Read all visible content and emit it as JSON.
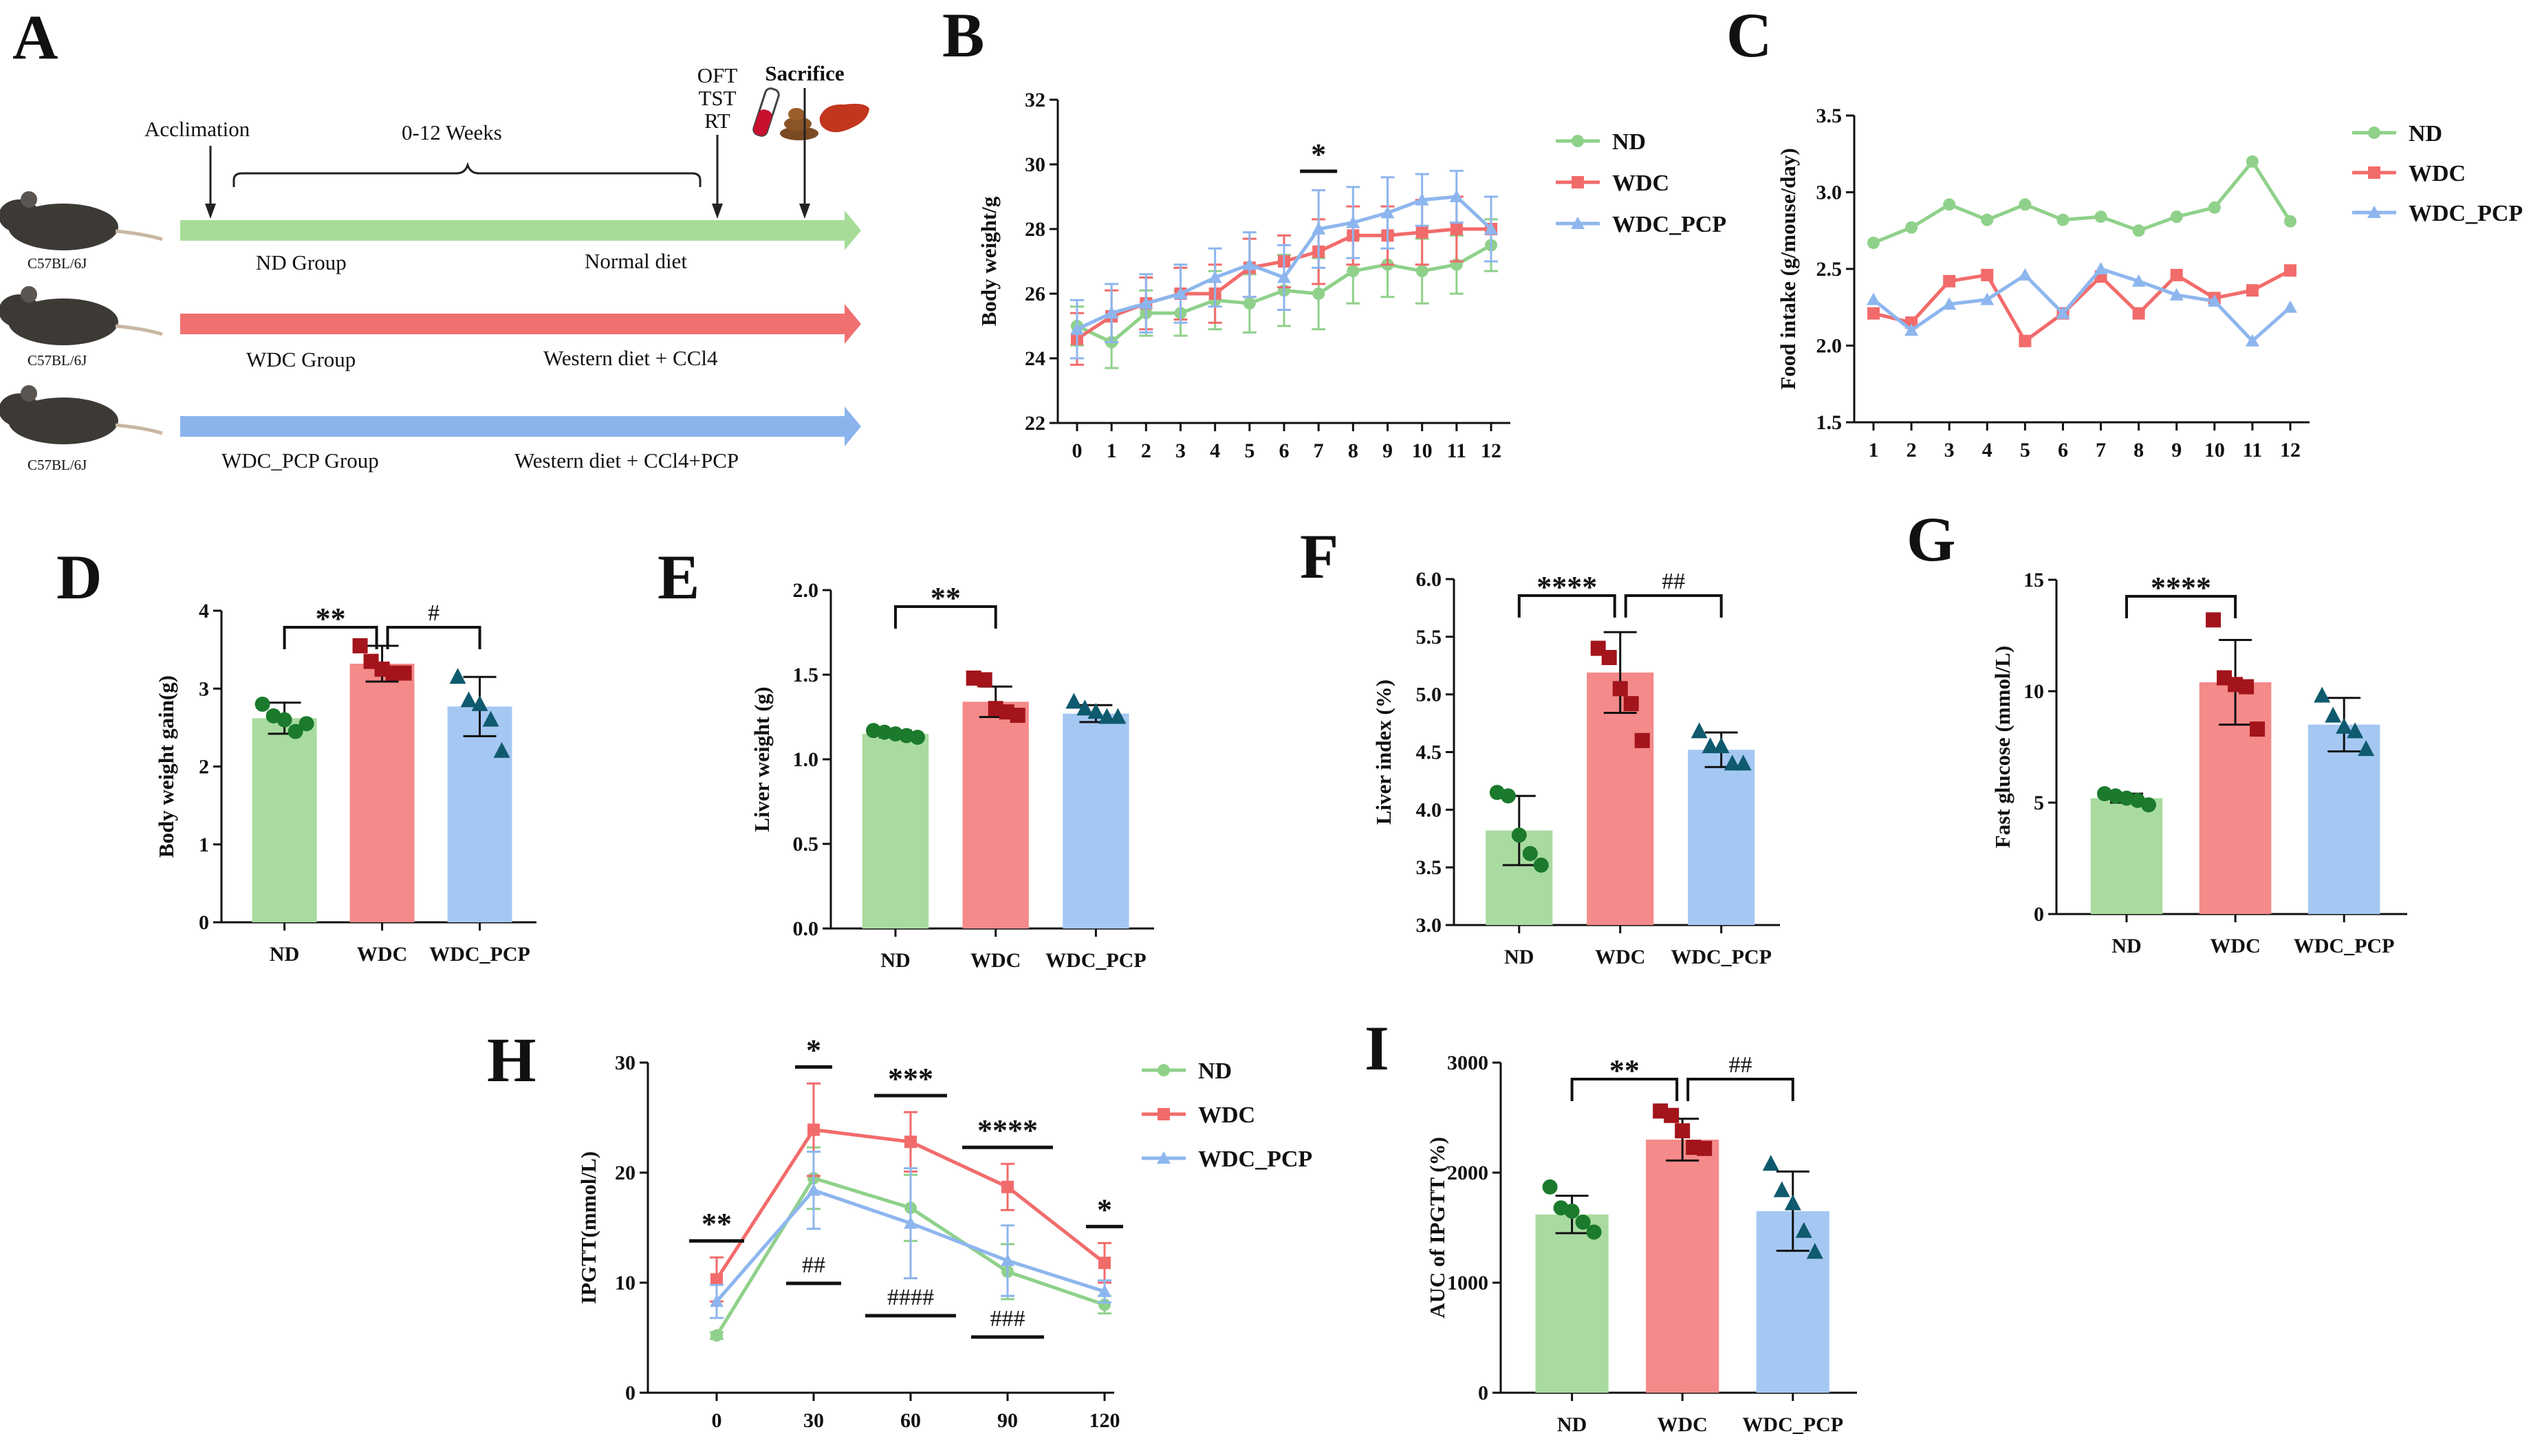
{
  "colors": {
    "ND": "#a9dba0",
    "WDC": "#f48a89",
    "WDC_PCP": "#a5c8f3",
    "ND_line": "#8fd18a",
    "WDC_line": "#f26b6b",
    "WDC_PCP_line": "#8db6ee",
    "ND_dot": "#1b7a2c",
    "WDC_dot": "#a3141b",
    "WDC_PCP_dot": "#0f5a6e",
    "arrow_ND": "#a6dc98",
    "arrow_WDC": "#f07070",
    "arrow_PCP": "#8cb4ec"
  },
  "panels": {
    "A": "A",
    "B": "B",
    "C": "C",
    "D": "D",
    "E": "E",
    "F": "F",
    "G": "G",
    "H": "H",
    "I": "I"
  },
  "schematic": {
    "acclimation": "Acclimation",
    "weeks": "0-12 Weeks",
    "oft": "OFT",
    "tst": "TST",
    "rt": "RT",
    "sacrifice": "Sacrifice",
    "strain": "C57BL/6J",
    "groups": [
      {
        "name": "ND Group",
        "diet": "Normal diet"
      },
      {
        "name": "WDC Group",
        "diet": "Western diet + CCl4"
      },
      {
        "name": "WDC_PCP Group",
        "diet": "Western diet + CCl4+PCP"
      }
    ]
  },
  "chart_data": [
    {
      "id": "B",
      "type": "line",
      "title": "",
      "xlabel": "",
      "ylabel": "Body weight/g",
      "x": [
        0,
        1,
        2,
        3,
        4,
        5,
        6,
        7,
        8,
        9,
        10,
        11,
        12
      ],
      "ylim": [
        22,
        32
      ],
      "yticks": [
        22,
        24,
        26,
        28,
        30,
        32
      ],
      "series": [
        {
          "name": "ND",
          "values": [
            25.0,
            24.5,
            25.4,
            25.4,
            25.8,
            25.7,
            26.1,
            26.0,
            26.7,
            26.9,
            26.7,
            26.9,
            27.5
          ],
          "err": [
            0.6,
            0.8,
            0.7,
            0.7,
            0.9,
            0.9,
            1.1,
            1.1,
            1.0,
            1.0,
            1.0,
            0.9,
            0.8
          ]
        },
        {
          "name": "WDC",
          "values": [
            24.6,
            25.3,
            25.7,
            26.0,
            26.0,
            26.8,
            27.0,
            27.3,
            27.8,
            27.8,
            27.9,
            28.0,
            28.0
          ],
          "err": [
            0.8,
            0.8,
            0.8,
            0.8,
            0.9,
            0.9,
            0.8,
            1.0,
            0.9,
            0.9,
            1.0,
            1.0,
            1.0
          ]
        },
        {
          "name": "WDC_PCP",
          "values": [
            24.9,
            25.4,
            25.7,
            26.0,
            26.5,
            26.9,
            26.5,
            28.0,
            28.2,
            28.5,
            28.9,
            29.0,
            28.0
          ],
          "err": [
            0.9,
            0.9,
            0.9,
            0.9,
            0.9,
            1.0,
            1.0,
            1.2,
            1.1,
            1.1,
            0.8,
            0.8,
            1.0
          ]
        }
      ],
      "annotations": [
        {
          "label": "*",
          "x": 7
        }
      ]
    },
    {
      "id": "C",
      "type": "line",
      "title": "",
      "xlabel": "",
      "ylabel": "Food intake (g/mouse/day)",
      "x": [
        1,
        2,
        3,
        4,
        5,
        6,
        7,
        8,
        9,
        10,
        11,
        12
      ],
      "ylim": [
        1.5,
        3.5
      ],
      "yticks": [
        1.5,
        2.0,
        2.5,
        3.0,
        3.5
      ],
      "series": [
        {
          "name": "ND",
          "values": [
            2.67,
            2.77,
            2.92,
            2.82,
            2.92,
            2.82,
            2.84,
            2.75,
            2.84,
            2.9,
            3.2,
            2.81
          ]
        },
        {
          "name": "WDC",
          "values": [
            2.21,
            2.15,
            2.42,
            2.46,
            2.03,
            2.21,
            2.45,
            2.21,
            2.46,
            2.31,
            2.36,
            2.49
          ]
        },
        {
          "name": "WDC_PCP",
          "values": [
            2.3,
            2.1,
            2.27,
            2.3,
            2.46,
            2.21,
            2.5,
            2.42,
            2.33,
            2.29,
            2.03,
            2.25
          ]
        }
      ]
    },
    {
      "id": "D",
      "type": "bar",
      "ylabel": "Body weight gain(g)",
      "categories": [
        "ND",
        "WDC",
        "WDC_PCP"
      ],
      "values": [
        2.62,
        3.32,
        2.77
      ],
      "err": [
        0.2,
        0.23,
        0.38
      ],
      "points": [
        [
          2.8,
          2.65,
          2.6,
          2.45,
          2.55
        ],
        [
          3.55,
          3.35,
          3.25,
          3.2,
          3.2
        ],
        [
          3.15,
          2.85,
          2.8,
          2.6,
          2.2
        ]
      ],
      "ylim": [
        0,
        4
      ],
      "yticks": [
        0,
        1,
        2,
        3,
        4
      ],
      "annotations": [
        {
          "label": "**",
          "between": [
            0,
            1
          ]
        },
        {
          "label": "#",
          "between": [
            1,
            2
          ]
        }
      ]
    },
    {
      "id": "E",
      "type": "bar",
      "ylabel": "Liver weight (g)",
      "categories": [
        "ND",
        "WDC",
        "WDC_PCP"
      ],
      "values": [
        1.15,
        1.34,
        1.27
      ],
      "err": [
        0.02,
        0.09,
        0.05
      ],
      "points": [
        [
          1.17,
          1.16,
          1.15,
          1.14,
          1.13
        ],
        [
          1.48,
          1.47,
          1.3,
          1.28,
          1.26
        ],
        [
          1.34,
          1.3,
          1.28,
          1.25,
          1.25
        ]
      ],
      "ylim": [
        0,
        2
      ],
      "yticks": [
        0.0,
        0.5,
        1.0,
        1.5,
        2.0
      ],
      "annotations": [
        {
          "label": "**",
          "between": [
            0,
            1
          ]
        }
      ]
    },
    {
      "id": "F",
      "type": "bar",
      "ylabel": "Liver index (%)",
      "categories": [
        "ND",
        "WDC",
        "WDC_PCP"
      ],
      "values": [
        3.82,
        5.19,
        4.52
      ],
      "err": [
        0.3,
        0.35,
        0.15
      ],
      "points": [
        [
          4.15,
          4.12,
          3.78,
          3.62,
          3.52
        ],
        [
          5.4,
          5.32,
          5.05,
          4.92,
          4.6
        ],
        [
          4.68,
          4.55,
          4.55,
          4.4,
          4.4
        ]
      ],
      "ylim": [
        3.0,
        6.0
      ],
      "yticks": [
        3.0,
        3.5,
        4.0,
        4.5,
        5.0,
        5.5,
        6.0
      ],
      "annotations": [
        {
          "label": "****",
          "between": [
            0,
            1
          ]
        },
        {
          "label": "##",
          "between": [
            1,
            2
          ]
        }
      ]
    },
    {
      "id": "G",
      "type": "bar",
      "ylabel": "Fast glucose (mmol/L)",
      "categories": [
        "ND",
        "WDC",
        "WDC_PCP"
      ],
      "values": [
        5.2,
        10.4,
        8.5
      ],
      "err": [
        0.2,
        1.9,
        1.2
      ],
      "points": [
        [
          5.4,
          5.3,
          5.2,
          5.1,
          4.9
        ],
        [
          13.2,
          10.6,
          10.3,
          10.2,
          8.3
        ],
        [
          9.8,
          8.9,
          8.4,
          8.2,
          7.4
        ]
      ],
      "ylim": [
        0,
        15
      ],
      "yticks": [
        0,
        5,
        10,
        15
      ],
      "annotations": [
        {
          "label": "****",
          "between": [
            0,
            1
          ]
        }
      ]
    },
    {
      "id": "H",
      "type": "line",
      "ylabel": "IPGTT(mmol/L)",
      "x": [
        0,
        30,
        60,
        90,
        120
      ],
      "ylim": [
        0,
        30
      ],
      "yticks": [
        0,
        10,
        20,
        30
      ],
      "series": [
        {
          "name": "ND",
          "values": [
            5.2,
            19.5,
            16.8,
            11.0,
            8.0
          ],
          "err": [
            0.3,
            2.8,
            3.0,
            2.5,
            0.8
          ]
        },
        {
          "name": "WDC",
          "values": [
            10.3,
            23.9,
            22.8,
            18.7,
            11.8
          ],
          "err": [
            2.0,
            4.2,
            2.7,
            2.1,
            1.8
          ]
        },
        {
          "name": "WDC_PCP",
          "values": [
            8.3,
            18.4,
            15.4,
            12.0,
            9.2
          ],
          "err": [
            1.5,
            3.5,
            5.0,
            3.2,
            1.0
          ]
        }
      ],
      "annotations": [
        {
          "label": "**",
          "x": 0,
          "pos": "above"
        },
        {
          "label": "*",
          "x": 30,
          "pos": "above"
        },
        {
          "label": "***",
          "x": 60,
          "pos": "above"
        },
        {
          "label": "****",
          "x": 90,
          "pos": "above"
        },
        {
          "label": "*",
          "x": 120,
          "pos": "above"
        },
        {
          "label": "##",
          "x": 30,
          "pos": "below"
        },
        {
          "label": "####",
          "x": 60,
          "pos": "below"
        },
        {
          "label": "###",
          "x": 90,
          "pos": "below"
        }
      ]
    },
    {
      "id": "I",
      "type": "bar",
      "ylabel": "AUC of IPGTT (%)",
      "categories": [
        "ND",
        "WDC",
        "WDC_PCP"
      ],
      "values": [
        1620,
        2300,
        1650
      ],
      "err": [
        170,
        190,
        360
      ],
      "points": [
        [
          1870,
          1680,
          1650,
          1550,
          1460
        ],
        [
          2560,
          2520,
          2380,
          2230,
          2220
        ],
        [
          2080,
          1840,
          1720,
          1470,
          1280
        ]
      ],
      "ylim": [
        0,
        3000
      ],
      "yticks": [
        0,
        1000,
        2000,
        3000
      ],
      "annotations": [
        {
          "label": "**",
          "between": [
            0,
            1
          ]
        },
        {
          "label": "##",
          "between": [
            1,
            2
          ]
        }
      ]
    }
  ]
}
